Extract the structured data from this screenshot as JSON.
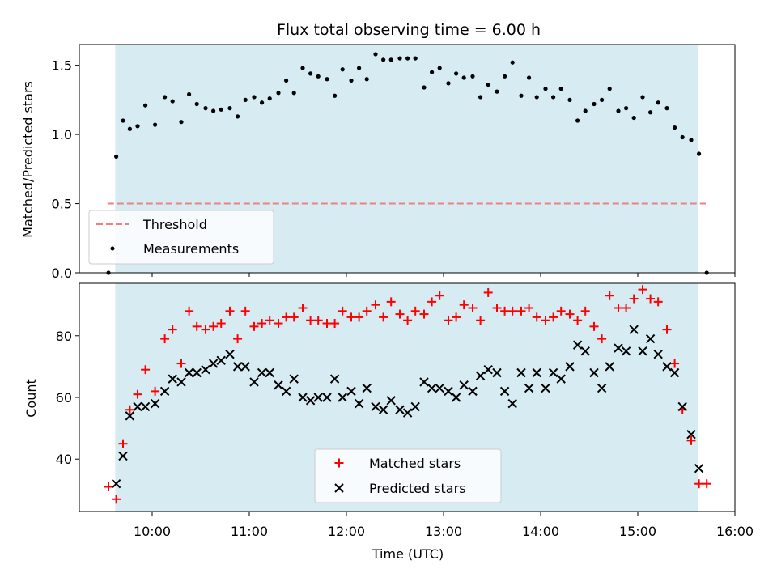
{
  "chart_data": [
    {
      "type": "scatter",
      "title": "Flux total observing time = 6.00 h",
      "xlabel": "",
      "ylabel": "Matched/Predicted stars",
      "xlim": [
        9.25,
        16.0
      ],
      "ylim": [
        0,
        1.65
      ],
      "yticks": [
        0.0,
        0.5,
        1.0,
        1.5
      ],
      "ytick_labels": [
        "0.0",
        "0.5",
        "1.0",
        "1.5"
      ],
      "shaded_span": [
        9.62,
        15.62
      ],
      "shade_color": "#add8e6",
      "legend_position": "lower-left",
      "threshold": {
        "name": "Threshold",
        "y": 0.5,
        "x": [
          9.62,
          15.7
        ],
        "color": "#f08080",
        "style": "dashed"
      },
      "series": [
        {
          "name": "Measurements",
          "color": "#000000",
          "marker": "dot",
          "x": [
            9.55,
            9.63,
            9.7,
            9.77,
            9.85,
            9.93,
            10.03,
            10.13,
            10.21,
            10.3,
            10.38,
            10.46,
            10.55,
            10.63,
            10.71,
            10.8,
            10.88,
            10.96,
            11.05,
            11.13,
            11.21,
            11.3,
            11.38,
            11.46,
            11.55,
            11.63,
            11.71,
            11.8,
            11.88,
            11.96,
            12.05,
            12.13,
            12.21,
            12.3,
            12.38,
            12.46,
            12.55,
            12.63,
            12.71,
            12.8,
            12.88,
            12.96,
            13.05,
            13.13,
            13.21,
            13.3,
            13.38,
            13.46,
            13.55,
            13.63,
            13.71,
            13.8,
            13.88,
            13.96,
            14.05,
            14.13,
            14.21,
            14.3,
            14.38,
            14.46,
            14.55,
            14.63,
            14.71,
            14.8,
            14.88,
            14.96,
            15.05,
            15.13,
            15.21,
            15.3,
            15.38,
            15.46,
            15.55,
            15.63,
            15.71
          ],
          "y": [
            0.0,
            0.84,
            1.1,
            1.04,
            1.06,
            1.21,
            1.07,
            1.27,
            1.24,
            1.09,
            1.29,
            1.22,
            1.19,
            1.17,
            1.18,
            1.19,
            1.13,
            1.25,
            1.27,
            1.23,
            1.26,
            1.3,
            1.39,
            1.3,
            1.48,
            1.44,
            1.42,
            1.4,
            1.28,
            1.47,
            1.39,
            1.48,
            1.4,
            1.58,
            1.54,
            1.54,
            1.55,
            1.55,
            1.55,
            1.34,
            1.45,
            1.48,
            1.37,
            1.44,
            1.41,
            1.42,
            1.27,
            1.36,
            1.31,
            1.42,
            1.52,
            1.28,
            1.41,
            1.27,
            1.33,
            1.27,
            1.33,
            1.25,
            1.1,
            1.17,
            1.22,
            1.25,
            1.33,
            1.17,
            1.19,
            1.12,
            1.27,
            1.16,
            1.23,
            1.19,
            1.05,
            0.98,
            0.96,
            0.86,
            0.0
          ]
        }
      ]
    },
    {
      "type": "scatter",
      "title": "",
      "xlabel": "Time (UTC)",
      "ylabel": "Count",
      "xlim": [
        9.25,
        16.0
      ],
      "ylim": [
        23,
        97
      ],
      "yticks": [
        40,
        60,
        80
      ],
      "ytick_labels": [
        "40",
        "60",
        "80"
      ],
      "xticks": [
        10,
        11,
        12,
        13,
        14,
        15,
        16
      ],
      "xtick_labels": [
        "10:00",
        "11:00",
        "12:00",
        "13:00",
        "14:00",
        "15:00",
        "16:00"
      ],
      "shaded_span": [
        9.62,
        15.62
      ],
      "shade_color": "#add8e6",
      "legend_position": "lower-center",
      "series": [
        {
          "name": "Matched stars",
          "color": "#ff0000",
          "marker": "plus",
          "x": [
            9.55,
            9.63,
            9.7,
            9.77,
            9.85,
            9.93,
            10.03,
            10.13,
            10.21,
            10.3,
            10.38,
            10.46,
            10.55,
            10.63,
            10.71,
            10.8,
            10.88,
            10.96,
            11.05,
            11.13,
            11.21,
            11.3,
            11.38,
            11.46,
            11.55,
            11.63,
            11.71,
            11.8,
            11.88,
            11.96,
            12.05,
            12.13,
            12.21,
            12.3,
            12.38,
            12.46,
            12.55,
            12.63,
            12.71,
            12.8,
            12.88,
            12.96,
            13.05,
            13.13,
            13.21,
            13.3,
            13.38,
            13.46,
            13.55,
            13.63,
            13.71,
            13.8,
            13.88,
            13.96,
            14.05,
            14.13,
            14.21,
            14.3,
            14.38,
            14.46,
            14.55,
            14.63,
            14.71,
            14.8,
            14.88,
            14.96,
            15.05,
            15.13,
            15.21,
            15.3,
            15.38,
            15.46,
            15.55,
            15.63,
            15.71
          ],
          "y": [
            31,
            27,
            45,
            56,
            61,
            69,
            62,
            79,
            82,
            71,
            88,
            83,
            82,
            83,
            84,
            88,
            79,
            88,
            83,
            84,
            85,
            84,
            86,
            86,
            89,
            85,
            85,
            84,
            84,
            88,
            86,
            86,
            88,
            90,
            86,
            91,
            87,
            85,
            88,
            87,
            91,
            93,
            85,
            86,
            90,
            89,
            85,
            94,
            89,
            88,
            88,
            88,
            89,
            86,
            85,
            86,
            88,
            87,
            85,
            88,
            83,
            79,
            93,
            89,
            89,
            92,
            95,
            92,
            91,
            82,
            71,
            56,
            46,
            32,
            32
          ]
        },
        {
          "name": "Predicted stars",
          "color": "#000000",
          "marker": "x",
          "x": [
            9.63,
            9.7,
            9.77,
            9.85,
            9.93,
            10.03,
            10.13,
            10.21,
            10.3,
            10.38,
            10.46,
            10.55,
            10.63,
            10.71,
            10.8,
            10.88,
            10.96,
            11.05,
            11.13,
            11.21,
            11.3,
            11.38,
            11.46,
            11.55,
            11.63,
            11.71,
            11.8,
            11.88,
            11.96,
            12.05,
            12.13,
            12.21,
            12.3,
            12.38,
            12.46,
            12.55,
            12.63,
            12.71,
            12.8,
            12.88,
            12.96,
            13.05,
            13.13,
            13.21,
            13.3,
            13.38,
            13.46,
            13.55,
            13.63,
            13.71,
            13.8,
            13.88,
            13.96,
            14.05,
            14.13,
            14.21,
            14.3,
            14.38,
            14.46,
            14.55,
            14.63,
            14.71,
            14.8,
            14.88,
            14.96,
            15.05,
            15.13,
            15.21,
            15.3,
            15.38,
            15.46,
            15.55,
            15.63
          ],
          "y": [
            32,
            41,
            54,
            57,
            57,
            58,
            62,
            66,
            65,
            68,
            68,
            69,
            71,
            72,
            74,
            70,
            70,
            65,
            68,
            68,
            64,
            62,
            66,
            60,
            59,
            60,
            60,
            66,
            60,
            62,
            58,
            63,
            57,
            56,
            59,
            56,
            55,
            57,
            65,
            63,
            63,
            62,
            60,
            64,
            62,
            67,
            69,
            68,
            62,
            58,
            68,
            63,
            68,
            63,
            68,
            66,
            70,
            77,
            75,
            68,
            63,
            70,
            76,
            75,
            82,
            75,
            79,
            74,
            70,
            68,
            57,
            48,
            37
          ]
        }
      ]
    }
  ]
}
